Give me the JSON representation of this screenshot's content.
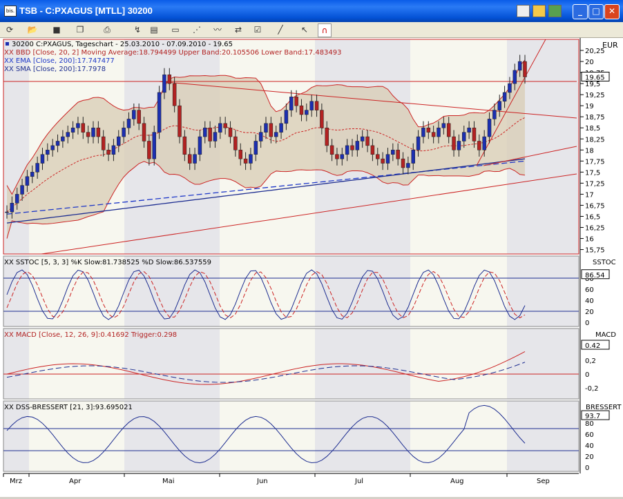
{
  "window": {
    "icon_text": "bis.",
    "title": "TSB - C:PXAGUS [MTLL] 30200"
  },
  "toolbar": {
    "icons": [
      "refresh-icon",
      "open-folder-icon",
      "save-icon",
      "copy-icon",
      "print-icon",
      "chart-style-icon",
      "chart-edit-icon",
      "window-icon",
      "indicator-icon",
      "trend-icon",
      "signal-icon",
      "properties-icon",
      "draw-line-icon",
      "pointer-icon",
      "magnet-icon"
    ]
  },
  "main_panel": {
    "symbol_line": "30200  C:PXAGUS, Tageschart - 25.03.2010 - 07.09.2010 - 19.65",
    "bbd_line": "XX BBD [Close, 20, 2] Moving Average:18.794499 Upper Band:20.105506 Lower Band:17.483493",
    "ema_line": "XX EMA [Close, 200]:17.747477",
    "sma_line": "XX SMA [Close, 200]:17.7978",
    "currency": "EUR",
    "last_price": "19.65",
    "y_ticks": [
      "20,25",
      "20",
      "19,75",
      "19,5",
      "19,25",
      "19",
      "18,75",
      "18,5",
      "18,25",
      "18",
      "17,75",
      "17,5",
      "17,25",
      "17",
      "16,75",
      "16,5",
      "16,25",
      "16",
      "15,75"
    ]
  },
  "sstoc_panel": {
    "label": "XX SSTOC [5, 3, 3] %K Slow:81.738525 %D Slow:86.537559",
    "axis_title": "SSTOC",
    "last_value": "86.54",
    "y_ticks": [
      "80",
      "60",
      "40",
      "20",
      "0"
    ]
  },
  "macd_panel": {
    "label": "XX MACD [Close, 12, 26, 9]:0.41692 Trigger:0.298",
    "axis_title": "MACD",
    "last_value": "0.42",
    "y_ticks": [
      "0,2",
      "0",
      "-0,2"
    ]
  },
  "dss_panel": {
    "label": "XX DSS-BRESSERT [21, 3]:93.695021",
    "axis_title": "BRESSERT",
    "last_value": "93.7",
    "y_ticks": [
      "80",
      "60",
      "40",
      "20",
      "0"
    ]
  },
  "x_axis": {
    "months": [
      "Mrz",
      "Apr",
      "Mai",
      "Jun",
      "Jul",
      "Aug",
      "Sep"
    ]
  },
  "colors": {
    "price_up": "#1c2fb0",
    "price_down": "#b22222",
    "band_fill": "#d8ccb4",
    "band_line": "#cc2222",
    "ema": "#1c36c8",
    "sma": "#1c2c90"
  },
  "chart_data": {
    "type": "candlestick",
    "period": "25.03.2010 - 07.09.2010",
    "last_close": 19.65,
    "indicators": {
      "bollinger_ma": 18.794499,
      "bollinger_upper": 20.105506,
      "bollinger_lower": 17.483493,
      "ema200": 17.747477,
      "sma200": 17.7978,
      "sstoc_k": 81.738525,
      "sstoc_d": 86.537559,
      "macd": 0.41692,
      "macd_trigger": 0.298,
      "dss_bressert": 93.695021
    },
    "closes_approx": [
      16.6,
      16.8,
      17.0,
      17.2,
      17.4,
      17.5,
      17.7,
      17.9,
      18.0,
      18.1,
      18.2,
      18.3,
      18.4,
      18.5,
      18.6,
      18.4,
      18.3,
      18.5,
      18.3,
      18.0,
      17.9,
      18.1,
      18.3,
      18.5,
      18.7,
      18.9,
      18.6,
      18.2,
      17.8,
      18.4,
      19.3,
      19.7,
      19.5,
      19.0,
      18.3,
      17.9,
      17.7,
      17.9,
      18.3,
      18.5,
      18.2,
      18.4,
      18.6,
      18.5,
      18.3,
      18.0,
      17.8,
      17.7,
      17.9,
      18.2,
      18.4,
      18.6,
      18.3,
      18.4,
      18.6,
      18.9,
      19.2,
      19.0,
      18.8,
      18.9,
      19.1,
      18.9,
      18.5,
      18.1,
      17.9,
      17.8,
      17.9,
      18.1,
      18.0,
      18.2,
      18.3,
      18.1,
      17.9,
      17.8,
      17.7,
      17.9,
      18.0,
      17.8,
      17.6,
      17.7,
      18.0,
      18.3,
      18.5,
      18.4,
      18.3,
      18.5,
      18.6,
      18.3,
      18.0,
      18.2,
      18.4,
      18.5,
      18.2,
      18.0,
      18.3,
      18.7,
      18.9,
      19.1,
      19.3,
      19.5,
      19.8,
      20.0,
      19.65
    ]
  }
}
